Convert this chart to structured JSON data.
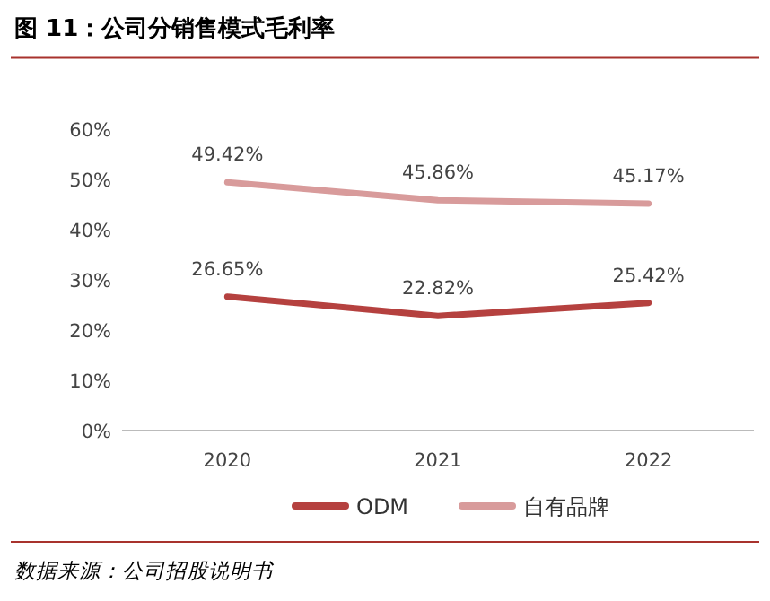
{
  "chart_data": {
    "type": "line",
    "title": "图 11：公司分销售模式毛利率",
    "categories": [
      "2020",
      "2021",
      "2022"
    ],
    "series": [
      {
        "name": "ODM",
        "color": "#b5413f",
        "values": [
          26.65,
          22.82,
          25.42
        ],
        "value_labels": [
          "26.65%",
          "22.82%",
          "25.42%"
        ]
      },
      {
        "name": "自有品牌",
        "color": "#d89b9b",
        "values": [
          49.42,
          45.86,
          45.17
        ],
        "value_labels": [
          "49.42%",
          "45.86%",
          "45.17%"
        ]
      }
    ],
    "ylim": [
      0,
      60
    ],
    "yticks": [
      {
        "value": 0,
        "label": "0%"
      },
      {
        "value": 10,
        "label": "10%"
      },
      {
        "value": 20,
        "label": "20%"
      },
      {
        "value": 30,
        "label": "30%"
      },
      {
        "value": 40,
        "label": "40%"
      },
      {
        "value": 50,
        "label": "50%"
      },
      {
        "value": 60,
        "label": "60%"
      }
    ],
    "grid": false,
    "legend": "bottom",
    "marker": "none",
    "line_style": "solid",
    "annotations": [
      "数据来源：公司招股说明书"
    ]
  }
}
